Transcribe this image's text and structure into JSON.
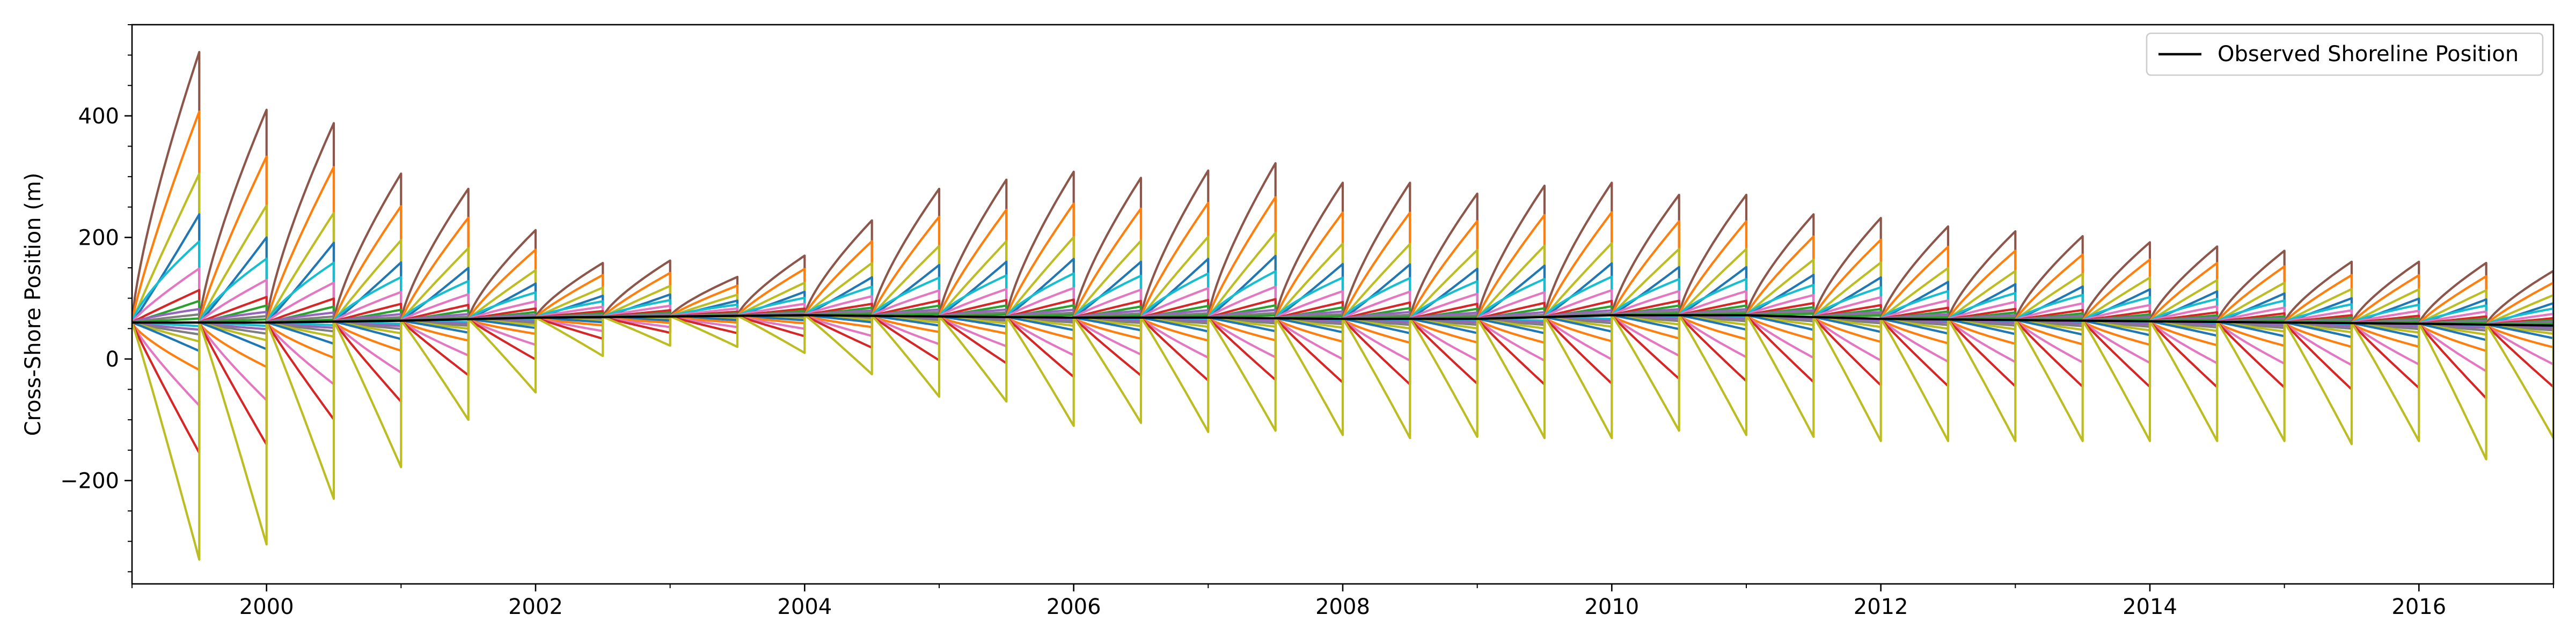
{
  "chart_data": {
    "type": "line",
    "title": "",
    "xlabel": "",
    "ylabel": "Cross-Shore Position (m)",
    "xlim": [
      1999.0,
      2017.0
    ],
    "ylim": [
      -370,
      550
    ],
    "x_ticks": [
      "2000",
      "2002",
      "2004",
      "2006",
      "2008",
      "2010",
      "2012",
      "2014",
      "2016"
    ],
    "x_tick_values": [
      2000,
      2002,
      2004,
      2006,
      2008,
      2010,
      2012,
      2014,
      2016
    ],
    "y_ticks": [
      "400",
      "200",
      "0",
      "−200"
    ],
    "y_tick_values": [
      400,
      200,
      0,
      -200
    ],
    "y_minor_step": 50,
    "grid": false,
    "legend": {
      "placement": "top-right",
      "entries": [
        {
          "label": "Observed Shoreline Position",
          "color": "#000000"
        }
      ]
    },
    "observed_series": {
      "name": "Observed Shoreline Position",
      "color": "#000000",
      "x": [
        1999.0,
        2000.0,
        2001.0,
        2002.0,
        2003.0,
        2004.0,
        2005.0,
        2006.0,
        2007.0,
        2008.0,
        2009.0,
        2010.0,
        2011.0,
        2012.0,
        2013.0,
        2014.0,
        2015.0,
        2016.0,
        2017.0
      ],
      "y": [
        60,
        60,
        63,
        68,
        70,
        72,
        70,
        68,
        68,
        66,
        66,
        72,
        72,
        66,
        64,
        62,
        60,
        58,
        55
      ]
    },
    "ensemble": {
      "description": "Forecast ensemble segments restarting every 0.5 year from the observed position",
      "start_year": 1999.0,
      "segment_length_years": 0.5,
      "segment_end_values": [
        {
          "max": 505,
          "min": -330
        },
        {
          "max": 410,
          "min": -305
        },
        {
          "max": 388,
          "min": -230
        },
        {
          "max": 305,
          "min": -178
        },
        {
          "max": 280,
          "min": -100
        },
        {
          "max": 212,
          "min": -55
        },
        {
          "max": 158,
          "min": 5
        },
        {
          "max": 162,
          "min": 22
        },
        {
          "max": 135,
          "min": 20
        },
        {
          "max": 170,
          "min": 10
        },
        {
          "max": 228,
          "min": -25
        },
        {
          "max": 280,
          "min": -62
        },
        {
          "max": 295,
          "min": -70
        },
        {
          "max": 308,
          "min": -110
        },
        {
          "max": 298,
          "min": -105
        },
        {
          "max": 310,
          "min": -120
        },
        {
          "max": 322,
          "min": -118
        },
        {
          "max": 290,
          "min": -125
        },
        {
          "max": 290,
          "min": -130
        },
        {
          "max": 272,
          "min": -128
        },
        {
          "max": 285,
          "min": -130
        },
        {
          "max": 290,
          "min": -130
        },
        {
          "max": 270,
          "min": -118
        },
        {
          "max": 270,
          "min": -125
        },
        {
          "max": 238,
          "min": -128
        },
        {
          "max": 232,
          "min": -135
        },
        {
          "max": 218,
          "min": -135
        },
        {
          "max": 210,
          "min": -135
        },
        {
          "max": 202,
          "min": -135
        },
        {
          "max": 192,
          "min": -135
        },
        {
          "max": 185,
          "min": -135
        },
        {
          "max": 178,
          "min": -135
        },
        {
          "max": 160,
          "min": -140
        },
        {
          "max": 160,
          "min": -135
        },
        {
          "max": 158,
          "min": -165
        },
        {
          "max": 145,
          "min": -130
        }
      ],
      "colors": [
        "#1f77b4",
        "#ff7f0e",
        "#2ca02c",
        "#d62728",
        "#9467bd",
        "#8c564b",
        "#e377c2",
        "#7f7f7f",
        "#bcbd22",
        "#17becf"
      ]
    }
  }
}
